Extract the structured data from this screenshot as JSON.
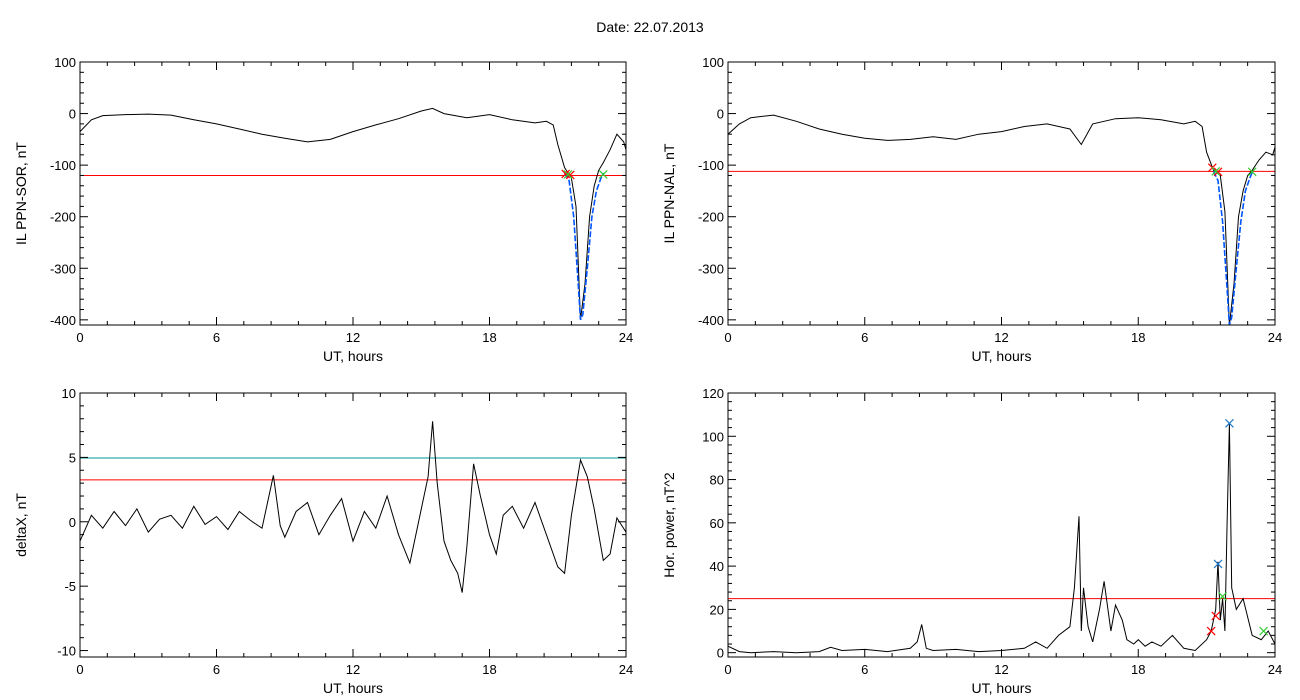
{
  "page": {
    "title": "Date:  22.07.2013"
  },
  "colors": {
    "axis": "#000000",
    "series": "#000000",
    "threshold_red": "#ff0000",
    "threshold_teal": "#009a9a",
    "fit_blue": "#0055ff",
    "marker_red": "#ff0000",
    "marker_green": "#33cc33",
    "marker_blue": "#1e78c8"
  },
  "chart_data": [
    {
      "id": "il-sor",
      "type": "line",
      "title": "",
      "xlabel": "UT, hours",
      "ylabel": "IL PPN-SOR, nT",
      "xlim": [
        0,
        24
      ],
      "ylim": [
        -410,
        100
      ],
      "xticks": [
        0,
        6,
        12,
        18,
        24
      ],
      "yticks": [
        -400,
        -300,
        -200,
        -100,
        0,
        100
      ],
      "ytick_labels": [
        "-400",
        "-300",
        "-200",
        "-100",
        "0",
        "100"
      ],
      "grid": false,
      "series": [
        {
          "role": "data",
          "color": "#000000",
          "x": [
            0,
            0.5,
            1,
            2,
            3,
            4,
            5,
            6,
            7,
            8,
            9,
            10,
            11,
            12,
            13,
            14,
            15,
            15.5,
            16,
            17,
            18,
            19,
            20,
            20.5,
            20.8,
            21,
            21.3,
            21.6,
            21.8,
            22.0,
            22.2,
            22.4,
            22.6,
            22.8,
            23.0,
            23.3,
            23.6,
            23.9,
            24
          ],
          "y": [
            -35,
            -12,
            -4,
            -2,
            -1,
            -3,
            -12,
            -20,
            -30,
            -40,
            -48,
            -55,
            -50,
            -35,
            -22,
            -10,
            5,
            10,
            0,
            -8,
            -2,
            -12,
            -18,
            -15,
            -22,
            -60,
            -105,
            -125,
            -180,
            -400,
            -330,
            -200,
            -140,
            -110,
            -95,
            -70,
            -40,
            -55,
            -70
          ]
        },
        {
          "role": "fit",
          "color": "#0055ff",
          "x": [
            21.3,
            21.5,
            21.7,
            21.9,
            22.0,
            22.1,
            22.3,
            22.5,
            22.7,
            22.9,
            23.0
          ],
          "y": [
            -115,
            -130,
            -200,
            -330,
            -400,
            -390,
            -300,
            -200,
            -150,
            -125,
            -115
          ]
        }
      ],
      "hlines": [
        {
          "y": -120,
          "color": "#ff0000"
        }
      ],
      "markers": [
        {
          "x": 21.35,
          "y": -117,
          "color": "#ff0000"
        },
        {
          "x": 21.55,
          "y": -119,
          "color": "#ff0000"
        },
        {
          "x": 21.45,
          "y": -118,
          "color": "#33cc33"
        },
        {
          "x": 23.0,
          "y": -118,
          "color": "#33cc33"
        }
      ]
    },
    {
      "id": "il-nal",
      "type": "line",
      "title": "",
      "xlabel": "UT, hours",
      "ylabel": "IL PPN-NAL, nT",
      "xlim": [
        0,
        24
      ],
      "ylim": [
        -410,
        100
      ],
      "xticks": [
        0,
        6,
        12,
        18,
        24
      ],
      "yticks": [
        -400,
        -300,
        -200,
        -100,
        0,
        100
      ],
      "ytick_labels": [
        "-400",
        "-300",
        "-200",
        "-100",
        "0",
        "100"
      ],
      "grid": false,
      "series": [
        {
          "role": "data",
          "color": "#000000",
          "x": [
            0,
            0.5,
            1,
            2,
            3,
            4,
            5,
            6,
            7,
            8,
            9,
            10,
            11,
            12,
            13,
            14,
            15,
            15.5,
            16,
            17,
            18,
            19,
            20,
            20.5,
            20.8,
            21,
            21.3,
            21.6,
            21.8,
            22.0,
            22.2,
            22.4,
            22.6,
            22.8,
            23.0,
            23.3,
            23.6,
            23.9,
            24
          ],
          "y": [
            -40,
            -20,
            -8,
            -3,
            -15,
            -30,
            -40,
            -48,
            -52,
            -50,
            -45,
            -50,
            -40,
            -35,
            -25,
            -20,
            -30,
            -60,
            -20,
            -10,
            -8,
            -12,
            -20,
            -15,
            -25,
            -75,
            -110,
            -120,
            -190,
            -410,
            -330,
            -200,
            -150,
            -120,
            -110,
            -90,
            -75,
            -80,
            -65
          ]
        },
        {
          "role": "fit",
          "color": "#0055ff",
          "x": [
            21.3,
            21.5,
            21.7,
            21.9,
            22.0,
            22.1,
            22.3,
            22.5,
            22.7,
            22.9,
            23.0
          ],
          "y": [
            -112,
            -130,
            -210,
            -340,
            -410,
            -395,
            -300,
            -210,
            -150,
            -125,
            -114
          ]
        }
      ],
      "hlines": [
        {
          "y": -112,
          "color": "#ff0000"
        }
      ],
      "markers": [
        {
          "x": 21.25,
          "y": -105,
          "color": "#ff0000"
        },
        {
          "x": 21.5,
          "y": -113,
          "color": "#ff0000"
        },
        {
          "x": 21.4,
          "y": -112,
          "color": "#33cc33"
        },
        {
          "x": 23.0,
          "y": -113,
          "color": "#33cc33"
        }
      ]
    },
    {
      "id": "deltax",
      "type": "line",
      "title": "",
      "xlabel": "UT, hours",
      "ylabel": "deltaX, nT",
      "xlim": [
        0,
        24
      ],
      "ylim": [
        -10.5,
        10
      ],
      "xticks": [
        0,
        6,
        12,
        18,
        24
      ],
      "yticks": [
        -10,
        -5,
        0,
        5,
        10
      ],
      "ytick_labels": [
        "-10",
        "-5",
        "0",
        "5",
        "10"
      ],
      "grid": false,
      "series": [
        {
          "role": "data",
          "color": "#000000",
          "x": [
            0,
            0.5,
            1,
            1.5,
            2,
            2.5,
            3,
            3.5,
            4,
            4.5,
            5,
            5.5,
            6,
            6.5,
            7,
            7.5,
            8,
            8.5,
            8.8,
            9,
            9.5,
            10,
            10.5,
            11,
            11.5,
            12,
            12.5,
            13,
            13.5,
            14,
            14.5,
            15,
            15.3,
            15.5,
            15.7,
            16,
            16.3,
            16.6,
            16.8,
            17,
            17.3,
            17.6,
            18,
            18.3,
            18.6,
            19,
            19.5,
            20,
            20.5,
            21,
            21.3,
            21.6,
            22,
            22.3,
            22.6,
            23,
            23.3,
            23.6,
            24
          ],
          "y": [
            -1.5,
            0.5,
            -0.5,
            0.8,
            -0.3,
            1.0,
            -0.8,
            0.2,
            0.5,
            -0.5,
            1.2,
            -0.2,
            0.4,
            -0.6,
            0.8,
            0.1,
            -0.5,
            3.6,
            -0.3,
            -1.2,
            0.8,
            1.5,
            -1.0,
            0.5,
            1.8,
            -1.5,
            0.8,
            -0.5,
            2.0,
            -1.0,
            -3.2,
            1.0,
            3.5,
            7.8,
            3.0,
            -1.5,
            -3.0,
            -4.0,
            -5.5,
            -2.0,
            4.5,
            2.0,
            -1.0,
            -2.5,
            0.5,
            1.2,
            -0.5,
            1.5,
            -1.0,
            -3.5,
            -4.0,
            0.5,
            4.8,
            3.5,
            1.0,
            -3.0,
            -2.5,
            0.3,
            -0.8
          ]
        }
      ],
      "hlines": [
        {
          "y": 4.95,
          "color": "#009a9a"
        },
        {
          "y": 3.25,
          "color": "#ff0000"
        }
      ],
      "markers": []
    },
    {
      "id": "hor-power",
      "type": "line",
      "title": "",
      "xlabel": "UT, hours",
      "ylabel": "Hor. power, nT^2",
      "xlim": [
        0,
        24
      ],
      "ylim": [
        -2,
        120
      ],
      "xticks": [
        0,
        6,
        12,
        18,
        24
      ],
      "yticks": [
        0,
        20,
        40,
        60,
        80,
        100,
        120
      ],
      "ytick_labels": [
        "0",
        "20",
        "40",
        "60",
        "80",
        "100",
        "120"
      ],
      "grid": false,
      "series": [
        {
          "role": "data",
          "color": "#000000",
          "x": [
            0,
            0.5,
            1,
            2,
            3,
            4,
            4.5,
            5,
            6,
            7,
            8,
            8.3,
            8.5,
            8.7,
            9,
            10,
            11,
            12,
            13,
            13.5,
            14,
            14.5,
            15,
            15.2,
            15.4,
            15.5,
            15.6,
            15.8,
            16,
            16.3,
            16.5,
            16.8,
            17,
            17.3,
            17.5,
            17.8,
            18,
            18.3,
            18.6,
            19,
            19.5,
            20,
            20.5,
            21,
            21.2,
            21.4,
            21.5,
            21.6,
            21.7,
            21.8,
            21.9,
            22.0,
            22.1,
            22.3,
            22.6,
            23,
            23.4,
            23.7,
            24
          ],
          "y": [
            3,
            0.5,
            0,
            0.5,
            0,
            0.5,
            2.5,
            1,
            1.5,
            0.5,
            2,
            5,
            13,
            2,
            1,
            1.5,
            0.5,
            1,
            2,
            5,
            2,
            8,
            12,
            30,
            63,
            10,
            30,
            12,
            5,
            20,
            33,
            10,
            22,
            15,
            6,
            4,
            6,
            3,
            5,
            3,
            8,
            2,
            1,
            6,
            10,
            20,
            42,
            15,
            25,
            10,
            60,
            106,
            30,
            20,
            25,
            8,
            6,
            10,
            4
          ]
        }
      ],
      "hlines": [
        {
          "y": 25,
          "color": "#ff0000"
        }
      ],
      "markers": [
        {
          "x": 21.2,
          "y": 10,
          "color": "#ff0000"
        },
        {
          "x": 21.4,
          "y": 17,
          "color": "#ff0000"
        },
        {
          "x": 21.5,
          "y": 41,
          "color": "#1e78c8"
        },
        {
          "x": 21.7,
          "y": 26,
          "color": "#33cc33"
        },
        {
          "x": 22.0,
          "y": 106,
          "color": "#1e78c8"
        },
        {
          "x": 23.5,
          "y": 10,
          "color": "#33cc33"
        }
      ]
    }
  ]
}
